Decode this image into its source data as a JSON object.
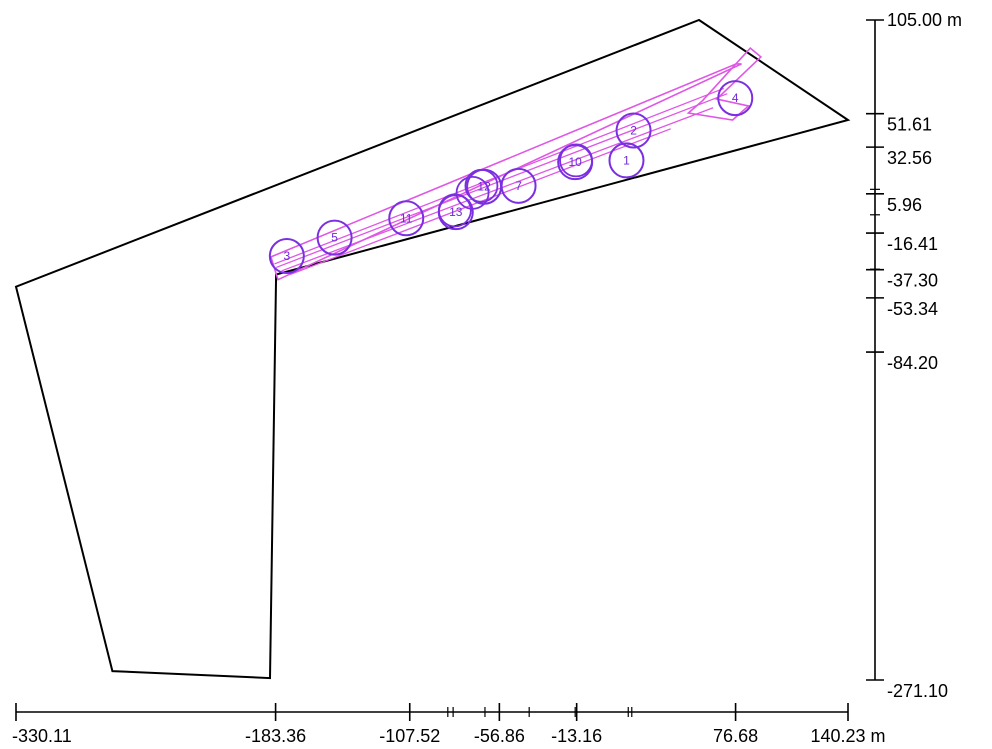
{
  "colors": {
    "boundary": "#000000",
    "corridor": "#e056e6",
    "marker": "#7a2fe0"
  },
  "x_axis": {
    "unit": "m",
    "labels": [
      {
        "text": "-330.11",
        "value": -330.11
      },
      {
        "text": "-183.36",
        "value": -183.36
      },
      {
        "text": "-107.52",
        "value": -107.52
      },
      {
        "text": "-56.86",
        "value": -56.86
      },
      {
        "text": "-13.16",
        "value": -13.16
      },
      {
        "text": "76.68",
        "value": 76.68
      },
      {
        "text": "140.23 m",
        "value": 140.23
      }
    ],
    "minor_ticks": [
      -86.0,
      -83.0,
      -65.0,
      -40.0,
      -14.0,
      16.0,
      18.0
    ]
  },
  "y_axis": {
    "unit": "m",
    "labels": [
      {
        "text": "105.00 m",
        "value": 105.0
      },
      {
        "text": "51.61",
        "value": 51.61
      },
      {
        "text": "32.56",
        "value": 32.56
      },
      {
        "text": "5.96",
        "value": 5.96
      },
      {
        "text": "-16.41",
        "value": -16.41
      },
      {
        "text": "-37.30",
        "value": -37.3
      },
      {
        "text": "-53.34",
        "value": -53.34
      },
      {
        "text": "-84.20",
        "value": -84.2
      },
      {
        "text": "-271.10",
        "value": -271.1
      }
    ],
    "minor_ticks": [
      8.5,
      6.0,
      -6.0,
      -37.0
    ]
  },
  "boundary_polygon": [
    [
      56,
      105
    ],
    [
      140.23,
      48
    ],
    [
      -183.1,
      -40
    ],
    [
      -186.5,
      -270
    ],
    [
      -275.6,
      -266
    ],
    [
      -330.11,
      -47
    ]
  ],
  "corridor": {
    "outer": [
      [
        -186,
        -30
      ],
      [
        77,
        80
      ],
      [
        80,
        80
      ],
      [
        -182,
        -43
      ]
    ],
    "rails": [
      [
        [
          -184,
          -34
        ],
        [
          70,
          66
        ]
      ],
      [
        [
          -183,
          -36
        ],
        [
          72,
          63
        ]
      ],
      [
        [
          -180,
          -38
        ],
        [
          64,
          55
        ]
      ],
      [
        [
          -175,
          -40
        ],
        [
          40,
          43
        ]
      ]
    ],
    "tip": [
      [
        58,
        59
      ],
      [
        85,
        89
      ],
      [
        91,
        84
      ],
      [
        66,
        60
      ],
      [
        84,
        56
      ],
      [
        75,
        48
      ],
      [
        50,
        52
      ]
    ]
  },
  "markers": [
    {
      "label": "1",
      "x": 15.0,
      "y": 25.0
    },
    {
      "label": "2",
      "x": 19.0,
      "y": 42.0
    },
    {
      "label": "3",
      "x": -177.0,
      "y": -29.5
    },
    {
      "label": "4",
      "x": 76.5,
      "y": 60.5
    },
    {
      "label": "5",
      "x": -150.0,
      "y": -19.0
    },
    {
      "label": "7",
      "x": -46.0,
      "y": 10.5
    },
    {
      "label": "10",
      "x": -14.0,
      "y": 24.0
    },
    {
      "label": "11",
      "x": -109.5,
      "y": -8.0
    },
    {
      "label": "12",
      "x": -65.5,
      "y": 10.0
    },
    {
      "label": "13",
      "x": -81.5,
      "y": -4.5
    }
  ],
  "extra_circles": [
    {
      "x": -72.0,
      "y": 6.5
    },
    {
      "x": -67.0,
      "y": 10.5
    },
    {
      "x": -13.5,
      "y": 25.0
    },
    {
      "x": -82.0,
      "y": -3.5
    }
  ]
}
